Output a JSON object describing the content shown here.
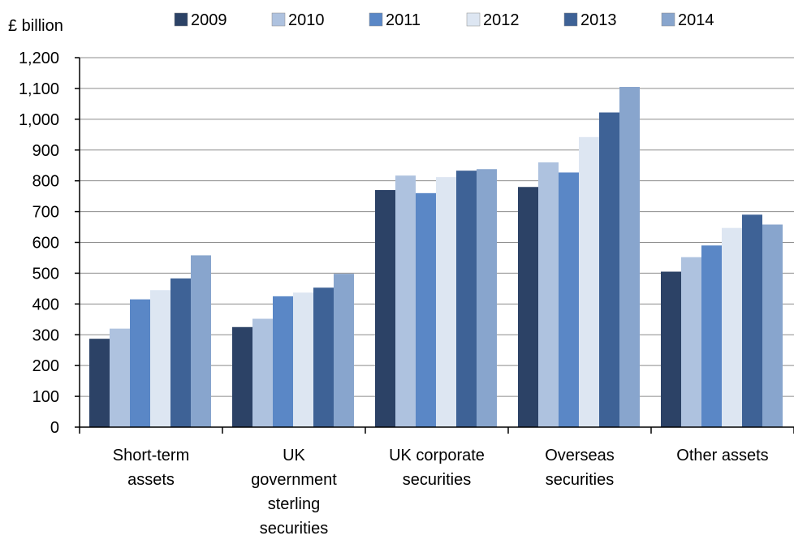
{
  "chart_data": {
    "type": "bar",
    "title": "",
    "ylabel": "£ billion",
    "xlabel": "",
    "ylim": [
      0,
      1200
    ],
    "yticks": [
      0,
      100,
      200,
      300,
      400,
      500,
      600,
      700,
      800,
      900,
      1000,
      1100,
      1200
    ],
    "ytick_labels": [
      "0",
      "100",
      "200",
      "300",
      "400",
      "500",
      "600",
      "700",
      "800",
      "900",
      "1,000",
      "1,100",
      "1,200"
    ],
    "grid": "horizontal",
    "legend_position": "top",
    "categories": [
      "Short-term assets",
      "UK government sterling securities",
      "UK corporate securities",
      "Overseas securities",
      "Other assets"
    ],
    "category_label_lines": [
      [
        "Short-term",
        "assets"
      ],
      [
        "UK",
        "government",
        "sterling",
        "securities"
      ],
      [
        "UK corporate",
        "securities"
      ],
      [
        "Overseas",
        "securities"
      ],
      [
        "Other assets"
      ]
    ],
    "series": [
      {
        "name": "2009",
        "color": "#2c4266",
        "values": [
          287,
          325,
          770,
          780,
          505
        ]
      },
      {
        "name": "2010",
        "color": "#aec2df",
        "values": [
          320,
          352,
          817,
          860,
          552
        ]
      },
      {
        "name": "2011",
        "color": "#5a87c6",
        "values": [
          415,
          425,
          760,
          827,
          590
        ]
      },
      {
        "name": "2012",
        "color": "#dde6f2",
        "values": [
          445,
          437,
          812,
          942,
          647
        ]
      },
      {
        "name": "2013",
        "color": "#3e6296",
        "values": [
          483,
          453,
          833,
          1022,
          690
        ]
      },
      {
        "name": "2014",
        "color": "#88a5cd",
        "values": [
          558,
          498,
          838,
          1105,
          658
        ]
      }
    ]
  }
}
